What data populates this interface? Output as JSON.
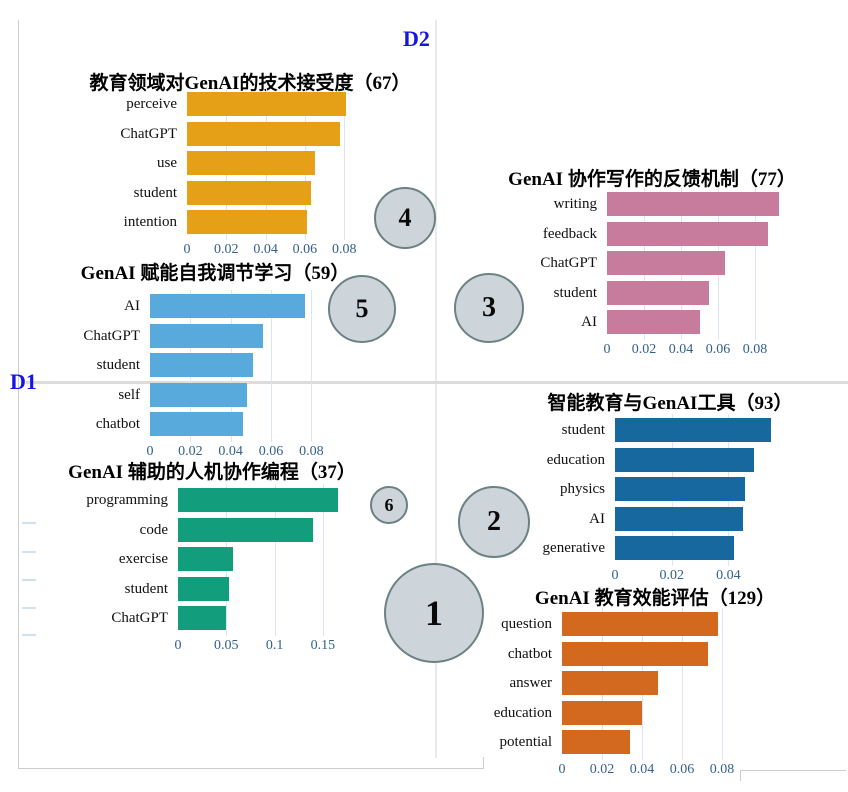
{
  "figure": {
    "d1_label": "D1",
    "d2_label": "D2"
  },
  "colors": {
    "axis_label": "#1414E6",
    "bubble_fill": "#CDD5DB",
    "bubble_border": "#6C8182",
    "quadrant_line": "#DCDCDC",
    "tick_text": "#33608C"
  },
  "chart_data": [
    {
      "id": "tam",
      "type": "bar",
      "topic_number": 4,
      "title": "教育领域对GenAI的技术接受度",
      "doc_count": 67,
      "bar_color": "#E5A017",
      "categories": [
        "perceive",
        "ChatGPT",
        "use",
        "student",
        "intention"
      ],
      "values": [
        0.081,
        0.078,
        0.065,
        0.063,
        0.061
      ],
      "xticks": [
        {
          "v": 0,
          "label": "0"
        },
        {
          "v": 0.02,
          "label": "0.02"
        },
        {
          "v": 0.04,
          "label": "0.04"
        },
        {
          "v": 0.06,
          "label": "0.06"
        },
        {
          "v": 0.08,
          "label": "0.08"
        }
      ],
      "xlim": [
        0,
        0.09
      ],
      "orientation": "horizontal",
      "grid": true
    },
    {
      "id": "writing",
      "type": "bar",
      "topic_number": 3,
      "title": "GenAI 协作写作的反馈机制",
      "doc_count": 77,
      "bar_color": "#C77C9E",
      "categories": [
        "writing",
        "feedback",
        "ChatGPT",
        "student",
        "AI"
      ],
      "values": [
        0.093,
        0.087,
        0.064,
        0.055,
        0.05
      ],
      "xticks": [
        {
          "v": 0,
          "label": "0"
        },
        {
          "v": 0.02,
          "label": "0.02"
        },
        {
          "v": 0.04,
          "label": "0.04"
        },
        {
          "v": 0.06,
          "label": "0.06"
        },
        {
          "v": 0.08,
          "label": "0.08"
        }
      ],
      "xlim": [
        0,
        0.1
      ],
      "orientation": "horizontal",
      "grid": true
    },
    {
      "id": "srl",
      "type": "bar",
      "topic_number": 5,
      "title": "GenAI 赋能自我调节学习",
      "doc_count": 59,
      "bar_color": "#58A9DC",
      "categories": [
        "AI",
        "ChatGPT",
        "student",
        "self",
        "chatbot"
      ],
      "values": [
        0.077,
        0.056,
        0.051,
        0.048,
        0.046
      ],
      "xticks": [
        {
          "v": 0,
          "label": "0"
        },
        {
          "v": 0.02,
          "label": "0.02"
        },
        {
          "v": 0.04,
          "label": "0.04"
        },
        {
          "v": 0.06,
          "label": "0.06"
        },
        {
          "v": 0.08,
          "label": "0.08"
        }
      ],
      "xlim": [
        0,
        0.085
      ],
      "orientation": "horizontal",
      "grid": true
    },
    {
      "id": "tools",
      "type": "bar",
      "topic_number": 2,
      "title": "智能教育与GenAI工具",
      "doc_count": 93,
      "bar_color": "#16689E",
      "categories": [
        "student",
        "education",
        "physics",
        "AI",
        "generative"
      ],
      "values": [
        0.055,
        0.049,
        0.046,
        0.045,
        0.042
      ],
      "xticks": [
        {
          "v": 0,
          "label": "0"
        },
        {
          "v": 0.02,
          "label": "0.02"
        },
        {
          "v": 0.04,
          "label": "0.04"
        }
      ],
      "xlim": [
        0,
        0.06
      ],
      "orientation": "horizontal",
      "grid": true
    },
    {
      "id": "programming",
      "type": "bar",
      "topic_number": 6,
      "title": "GenAI 辅助的人机协作编程",
      "doc_count": 37,
      "bar_color": "#129E7C",
      "categories": [
        "programming",
        "code",
        "exercise",
        "student",
        "ChatGPT"
      ],
      "values": [
        0.166,
        0.14,
        0.057,
        0.053,
        0.05
      ],
      "xticks": [
        {
          "v": 0,
          "label": "0"
        },
        {
          "v": 0.05,
          "label": "0.05"
        },
        {
          "v": 0.1,
          "label": "0.1"
        },
        {
          "v": 0.15,
          "label": "0.15"
        }
      ],
      "xlim": [
        0,
        0.185
      ],
      "orientation": "horizontal",
      "grid": true
    },
    {
      "id": "eval",
      "type": "bar",
      "topic_number": 1,
      "title": "GenAI 教育效能评估",
      "doc_count": 129,
      "bar_color": "#D2691E",
      "categories": [
        "question",
        "chatbot",
        "answer",
        "education",
        "potential"
      ],
      "values": [
        0.078,
        0.073,
        0.048,
        0.04,
        0.034
      ],
      "xticks": [
        {
          "v": 0,
          "label": "0"
        },
        {
          "v": 0.02,
          "label": "0.02"
        },
        {
          "v": 0.04,
          "label": "0.04"
        },
        {
          "v": 0.06,
          "label": "0.06"
        },
        {
          "v": 0.08,
          "label": "0.08"
        }
      ],
      "xlim": [
        0,
        0.09
      ],
      "orientation": "horizontal",
      "grid": true
    }
  ]
}
